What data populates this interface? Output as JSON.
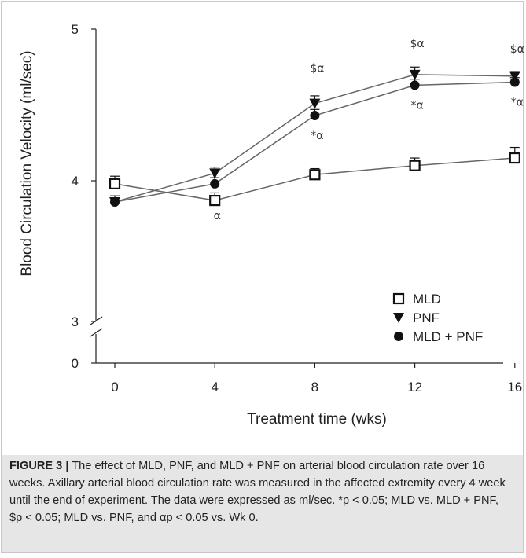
{
  "chart_data": {
    "type": "line",
    "title": "",
    "xlabel": "Treatment time (wks)",
    "ylabel": "Blood Circulation Velocity (ml/sec)",
    "x": [
      0,
      4,
      8,
      12,
      16
    ],
    "x_ticks": [
      "0",
      "4",
      "8",
      "12",
      "16"
    ],
    "y_ticks": [
      "0",
      "3",
      "4",
      "5"
    ],
    "ylim": [
      3,
      5
    ],
    "y_axis_break": true,
    "grid": false,
    "legend_position": "bottom-right",
    "series": [
      {
        "name": "MLD",
        "marker": "open-square",
        "values": [
          3.98,
          3.87,
          4.04,
          4.1,
          4.15
        ],
        "error": [
          0.05,
          0.05,
          0.04,
          0.05,
          0.07
        ]
      },
      {
        "name": "PNF",
        "marker": "filled-triangle-down",
        "values": [
          3.86,
          4.05,
          4.51,
          4.7,
          4.69
        ],
        "error": [
          0.04,
          0.04,
          0.05,
          0.05,
          0.03
        ]
      },
      {
        "name": "MLD + PNF",
        "marker": "filled-circle",
        "values": [
          3.86,
          3.98,
          4.43,
          4.63,
          4.65
        ],
        "error": [
          0.04,
          0.04,
          0.04,
          0.04,
          0.03
        ]
      }
    ],
    "annotations": [
      {
        "x": 4,
        "text": "α"
      },
      {
        "x": 8,
        "text": "$α"
      },
      {
        "x": 8,
        "text": "*α"
      },
      {
        "x": 12,
        "text": "$α"
      },
      {
        "x": 12,
        "text": "*α"
      },
      {
        "x": 16,
        "text": "$α"
      },
      {
        "x": 16,
        "text": "*α"
      }
    ],
    "colors": {
      "axis": "#222222",
      "line": "#666666",
      "marker": "#111111"
    }
  },
  "caption": {
    "label": "FIGURE 3 |",
    "text": " The effect of MLD, PNF, and MLD + PNF on arterial blood circulation rate over 16 weeks. Axillary arterial blood circulation rate was measured in the affected extremity every 4 week until the end of experiment. The data were expressed as ml/sec. *p < 0.05; MLD vs. MLD + PNF, $p < 0.05; MLD vs. PNF, and αp < 0.05 vs. Wk 0."
  }
}
